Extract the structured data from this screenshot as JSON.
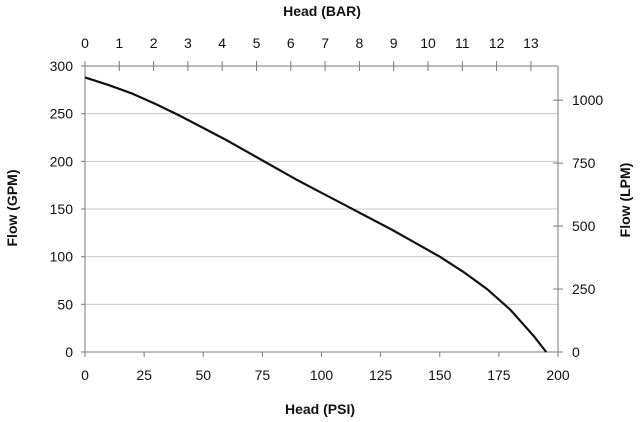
{
  "chart_data": {
    "type": "line",
    "title": "",
    "top_axis": {
      "label": "Head (BAR)",
      "ticks": [
        "0",
        "1",
        "2",
        "3",
        "4",
        "5",
        "6",
        "7",
        "8",
        "9",
        "10",
        "11",
        "12",
        "13"
      ],
      "lim": [
        0,
        13.79
      ]
    },
    "x_axis": {
      "label": "Head (PSI)",
      "ticks": [
        "0",
        "25",
        "50",
        "75",
        "100",
        "125",
        "150",
        "175",
        "200"
      ],
      "lim": [
        0,
        200
      ]
    },
    "y_axis": {
      "label": "Flow (GPM)",
      "ticks": [
        "0",
        "50",
        "100",
        "150",
        "200",
        "250",
        "300"
      ],
      "lim": [
        0,
        300
      ]
    },
    "y2_axis": {
      "label": "Flow (LPM)",
      "ticks": [
        "0",
        "250",
        "500",
        "750",
        "1000"
      ],
      "lim": [
        0,
        1135.6
      ]
    },
    "grid": true,
    "series": [
      {
        "x": [
          0,
          10,
          20,
          30,
          40,
          50,
          60,
          70,
          80,
          90,
          100,
          110,
          120,
          130,
          140,
          150,
          160,
          170,
          180,
          190,
          195
        ],
        "y": [
          288,
          280,
          271,
          260,
          248,
          235,
          222,
          208,
          194,
          180,
          167,
          154,
          141,
          128,
          114,
          100,
          84,
          66,
          44,
          16,
          0
        ]
      }
    ],
    "colors": {
      "line": "#111111",
      "grid": "#c8c8c8",
      "axis": "#7a7a7a"
    }
  }
}
